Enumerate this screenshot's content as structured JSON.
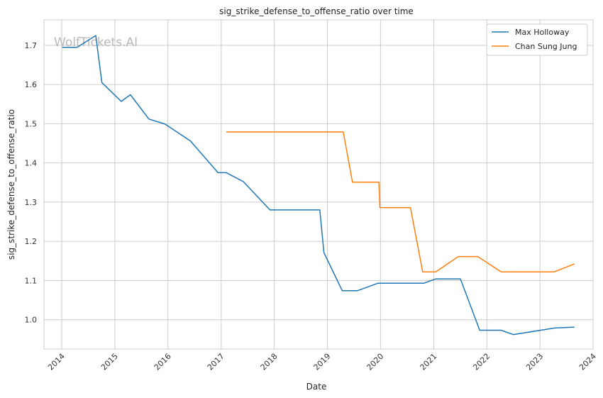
{
  "chart_data": {
    "type": "line",
    "title": "sig_strike_defense_to_offense_ratio over time",
    "xlabel": "Date",
    "ylabel": "sig_strike_defense_to_offense_ratio",
    "xlim": [
      "2013-09-01",
      "2024-01-01"
    ],
    "ylim": [
      0.925,
      1.765
    ],
    "x_ticks": [
      "2014",
      "2015",
      "2016",
      "2017",
      "2018",
      "2019",
      "2020",
      "2021",
      "2022",
      "2023",
      "2024"
    ],
    "y_ticks": [
      "1.0",
      "1.1",
      "1.2",
      "1.3",
      "1.4",
      "1.5",
      "1.6",
      "1.7"
    ],
    "grid": true,
    "legend_position": "top-right",
    "watermark": "WolfTickets.AI",
    "series": [
      {
        "name": "Max Holloway",
        "color": "#1f77b4",
        "points": [
          [
            "2014-01-04",
            1.695
          ],
          [
            "2014-04-16",
            1.695
          ],
          [
            "2014-08-23",
            1.725
          ],
          [
            "2014-10-04",
            1.605
          ],
          [
            "2015-02-14",
            1.557
          ],
          [
            "2015-04-18",
            1.574
          ],
          [
            "2015-08-23",
            1.512
          ],
          [
            "2015-12-12",
            1.499
          ],
          [
            "2016-06-04",
            1.456
          ],
          [
            "2016-12-10",
            1.375
          ],
          [
            "2017-02-05",
            1.375
          ],
          [
            "2017-06-03",
            1.352
          ],
          [
            "2017-12-02",
            1.28
          ],
          [
            "2018-11-10",
            1.28
          ],
          [
            "2018-12-08",
            1.171
          ],
          [
            "2019-04-13",
            1.074
          ],
          [
            "2019-07-27",
            1.074
          ],
          [
            "2019-12-14",
            1.093
          ],
          [
            "2020-07-11",
            1.093
          ],
          [
            "2020-10-25",
            1.093
          ],
          [
            "2021-01-16",
            1.104
          ],
          [
            "2021-07-03",
            1.104
          ],
          [
            "2021-11-13",
            0.973
          ],
          [
            "2022-04-09",
            0.973
          ],
          [
            "2022-07-02",
            0.962
          ],
          [
            "2023-04-15",
            0.979
          ],
          [
            "2023-08-26",
            0.981
          ]
        ]
      },
      {
        "name": "Chan Sung Jung",
        "color": "#ff7f0e",
        "points": [
          [
            "2017-02-04",
            1.479
          ],
          [
            "2019-04-20",
            1.479
          ],
          [
            "2019-06-22",
            1.351
          ],
          [
            "2019-12-21",
            1.351
          ],
          [
            "2019-12-28",
            1.286
          ],
          [
            "2020-07-25",
            1.286
          ],
          [
            "2020-10-17",
            1.122
          ],
          [
            "2021-01-15",
            1.122
          ],
          [
            "2021-06-19",
            1.161
          ],
          [
            "2021-10-30",
            1.161
          ],
          [
            "2022-04-09",
            1.122
          ],
          [
            "2023-04-08",
            1.122
          ],
          [
            "2023-08-26",
            1.142
          ]
        ]
      }
    ]
  }
}
